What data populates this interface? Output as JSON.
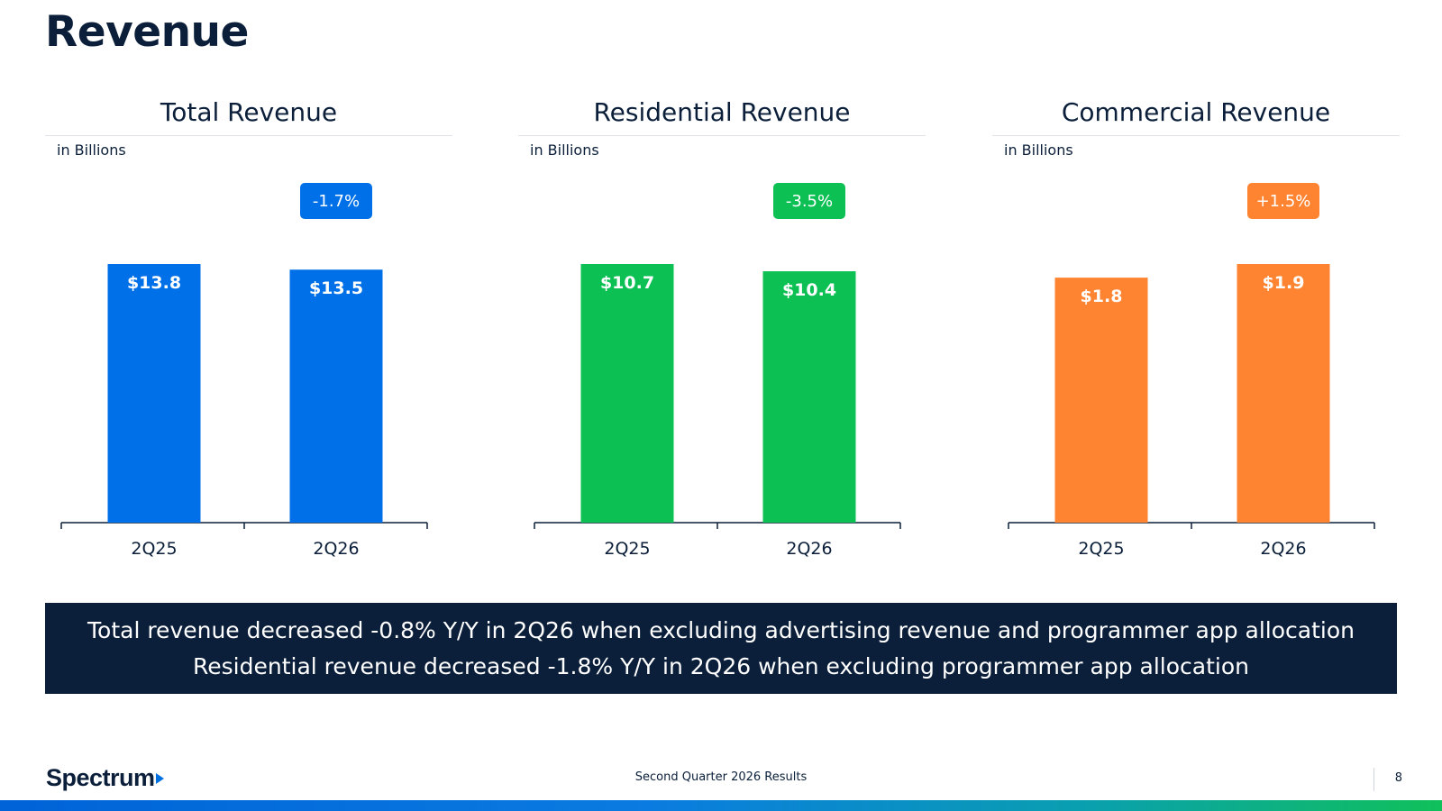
{
  "page": {
    "title": "Revenue",
    "footer_caption": "Second Quarter 2026 Results",
    "page_number": "8",
    "brand": "Spectrum"
  },
  "banner": {
    "line1": "Total revenue decreased -0.8% Y/Y in 2Q26 when excluding advertising revenue and programmer app allocation",
    "line2": "Residential revenue decreased -1.8% Y/Y in 2Q26 when excluding programmer app allocation"
  },
  "colors": {
    "total": "#0070e8",
    "residential": "#0cc054",
    "commercial": "#ff8432",
    "navy": "#0b1f3a"
  },
  "chart_data": [
    {
      "type": "bar",
      "title": "Total Revenue",
      "unit_label": "in Billions",
      "categories": [
        "2Q25",
        "2Q26"
      ],
      "values": [
        13.8,
        13.5
      ],
      "value_labels": [
        "$13.8",
        "$13.5"
      ],
      "change_label": "-1.7%",
      "color": "#0070e8"
    },
    {
      "type": "bar",
      "title": "Residential Revenue",
      "unit_label": "in Billions",
      "categories": [
        "2Q25",
        "2Q26"
      ],
      "values": [
        10.7,
        10.4
      ],
      "value_labels": [
        "$10.7",
        "$10.4"
      ],
      "change_label": "-3.5%",
      "color": "#0cc054"
    },
    {
      "type": "bar",
      "title": "Commercial Revenue",
      "unit_label": "in Billions",
      "categories": [
        "2Q25",
        "2Q26"
      ],
      "values": [
        1.8,
        1.9
      ],
      "value_labels": [
        "$1.8",
        "$1.9"
      ],
      "change_label": "+1.5%",
      "color": "#ff8432"
    }
  ]
}
